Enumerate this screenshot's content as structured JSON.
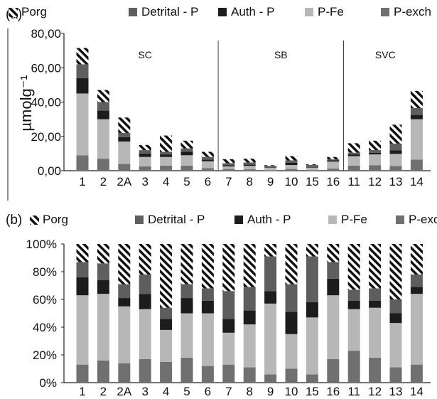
{
  "chart_data": [
    {
      "type": "bar",
      "stacked": true,
      "panel_label": "(a)",
      "ylabel": "µmolg⁻¹",
      "yticks": [
        "0,00",
        "20,00",
        "40,00",
        "60,00",
        "80,00"
      ],
      "ylim": [
        0,
        80
      ],
      "grid": false,
      "legend": [
        "Porg",
        "Detrital - P",
        "Auth - P",
        "P-Fe",
        "P-exch"
      ],
      "legend_position": "top",
      "categories": [
        "1",
        "2",
        "2A",
        "3",
        "4",
        "5",
        "6",
        "7",
        "8",
        "9",
        "10",
        "15",
        "16",
        "11",
        "12",
        "13",
        "14"
      ],
      "groups": [
        {
          "label": "SC",
          "from": 0,
          "to": 6
        },
        {
          "label": "SB",
          "from": 7,
          "to": 12
        },
        {
          "label": "SVC",
          "from": 13,
          "to": 16
        }
      ],
      "series": [
        {
          "name": "P-exch",
          "values": [
            9,
            7,
            4,
            2.5,
            3,
            3,
            1.5,
            1,
            0.8,
            0.2,
            1,
            0.3,
            1.3,
            3,
            3.2,
            2.8,
            6.5
          ]
        },
        {
          "name": "P-Fe",
          "values": [
            36,
            23,
            13,
            5.5,
            5,
            6,
            4,
            1.5,
            2,
            1.5,
            2.3,
            1.5,
            4,
            5.5,
            6.3,
            7,
            23.5
          ]
        },
        {
          "name": "Auth - P",
          "values": [
            9,
            5,
            2.5,
            2,
            1.5,
            2,
            1,
            0.6,
            0.7,
            0.3,
            1.4,
            0.4,
            0.7,
            1,
            1,
            2,
            2.5
          ]
        },
        {
          "name": "Detrital - P",
          "values": [
            8,
            5,
            2.5,
            2,
            1.5,
            2,
            1.5,
            1.3,
            1.3,
            0.8,
            1.3,
            1.1,
            0.6,
            1,
            1.5,
            4,
            4
          ]
        },
        {
          "name": "Porg",
          "values": [
            9.5,
            7,
            9,
            3,
            9.5,
            4.5,
            3,
            2.3,
            2.2,
            0.4,
            2.5,
            0.4,
            1.4,
            5.5,
            5.5,
            11,
            10
          ]
        }
      ]
    },
    {
      "type": "bar",
      "stacked": true,
      "panel_label": "(b)",
      "yticks": [
        "0%",
        "20%",
        "40%",
        "60%",
        "80%",
        "100%"
      ],
      "ylim": [
        0,
        100
      ],
      "grid": false,
      "legend": [
        "Porg",
        "Detrital - P",
        "Auth - P",
        "P-Fe",
        "P-exch"
      ],
      "legend_position": "top",
      "categories": [
        "1",
        "2",
        "2A",
        "3",
        "4",
        "5",
        "6",
        "7",
        "8",
        "9",
        "10",
        "15",
        "16",
        "11",
        "12",
        "13",
        "14"
      ],
      "series": [
        {
          "name": "P-exch",
          "values": [
            13,
            16,
            14,
            17,
            15,
            18,
            12,
            13,
            11,
            6,
            10,
            6,
            17,
            23,
            18,
            11,
            13
          ]
        },
        {
          "name": "P-Fe",
          "values": [
            50,
            48,
            41,
            36,
            23,
            32,
            38,
            23,
            31,
            51,
            25,
            41,
            46,
            30,
            36,
            32,
            51
          ]
        },
        {
          "name": "Auth - P",
          "values": [
            13,
            10,
            6,
            11,
            8,
            11,
            9,
            10,
            10,
            9,
            16,
            11,
            12,
            6,
            5,
            7,
            5
          ]
        },
        {
          "name": "Detrital - P",
          "values": [
            11,
            12,
            10,
            14,
            8,
            10,
            9,
            20,
            17,
            25,
            20,
            33,
            12,
            8,
            9,
            10,
            9
          ]
        },
        {
          "name": "Porg",
          "values": [
            13,
            14,
            29,
            22,
            46,
            29,
            32,
            34,
            31,
            9,
            29,
            9,
            13,
            33,
            32,
            40,
            22
          ]
        }
      ]
    }
  ],
  "colors": {
    "P-exch": "#707070",
    "P-Fe": "#b7b7b7",
    "Auth - P": "#1c1c1c",
    "Detrital - P": "#5e5e5e",
    "Porg": "hatch-black-white",
    "axis": "#222222"
  }
}
